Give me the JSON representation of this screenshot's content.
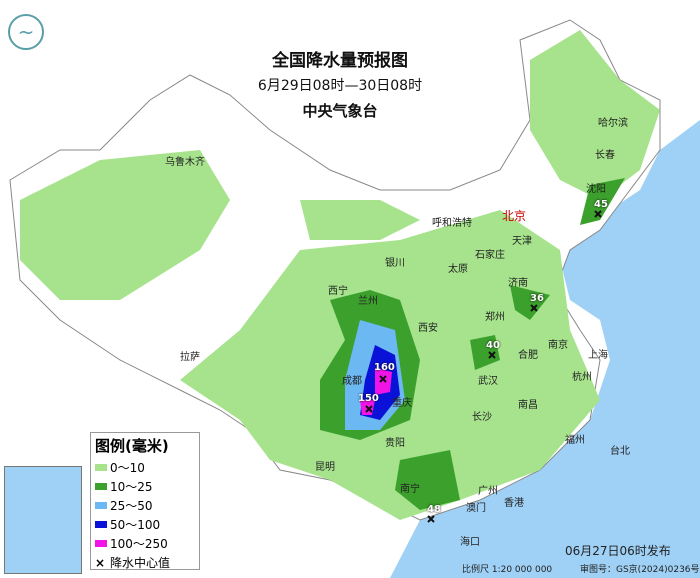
{
  "title": "全国降水量预报图",
  "period": "6月29日08时—30日08时",
  "agency": "中央气象台",
  "legend": {
    "title": "图例(毫米)",
    "items": [
      {
        "label": "0～10",
        "color": "#a6e38c"
      },
      {
        "label": "10～25",
        "color": "#3ca02c"
      },
      {
        "label": "25～50",
        "color": "#6cb8f2"
      },
      {
        "label": "50～100",
        "color": "#0a12d8"
      },
      {
        "label": "100～250",
        "color": "#f014e6"
      }
    ],
    "center_label": "降水中心值"
  },
  "rain_centers": [
    {
      "value": "160",
      "near": "成都"
    },
    {
      "value": "150",
      "near": "成都"
    },
    {
      "value": "36",
      "near": "济南"
    },
    {
      "value": "40",
      "near": "郑州"
    },
    {
      "value": "48",
      "near": "南宁"
    },
    {
      "value": "45",
      "near": "沈阳"
    }
  ],
  "cities": [
    "哈尔滨",
    "长春",
    "沈阳",
    "乌鲁木齐",
    "呼和浩特",
    "北京",
    "天津",
    "银川",
    "太原",
    "石家庄",
    "济南",
    "西宁",
    "兰州",
    "郑州",
    "西安",
    "合肥",
    "南京",
    "上海",
    "成都",
    "重庆",
    "武汉",
    "杭州",
    "拉萨",
    "长沙",
    "南昌",
    "贵阳",
    "福州",
    "台北",
    "昆明",
    "南宁",
    "广州",
    "澳门",
    "香港",
    "海口"
  ],
  "issued": "06月27日06时发布",
  "scale": "比例尺 1:20 000 000",
  "map_number": "审图号：GS京(2024)0236号",
  "colors": {
    "sea": "#9fd0f5",
    "land": "#ffffff"
  }
}
